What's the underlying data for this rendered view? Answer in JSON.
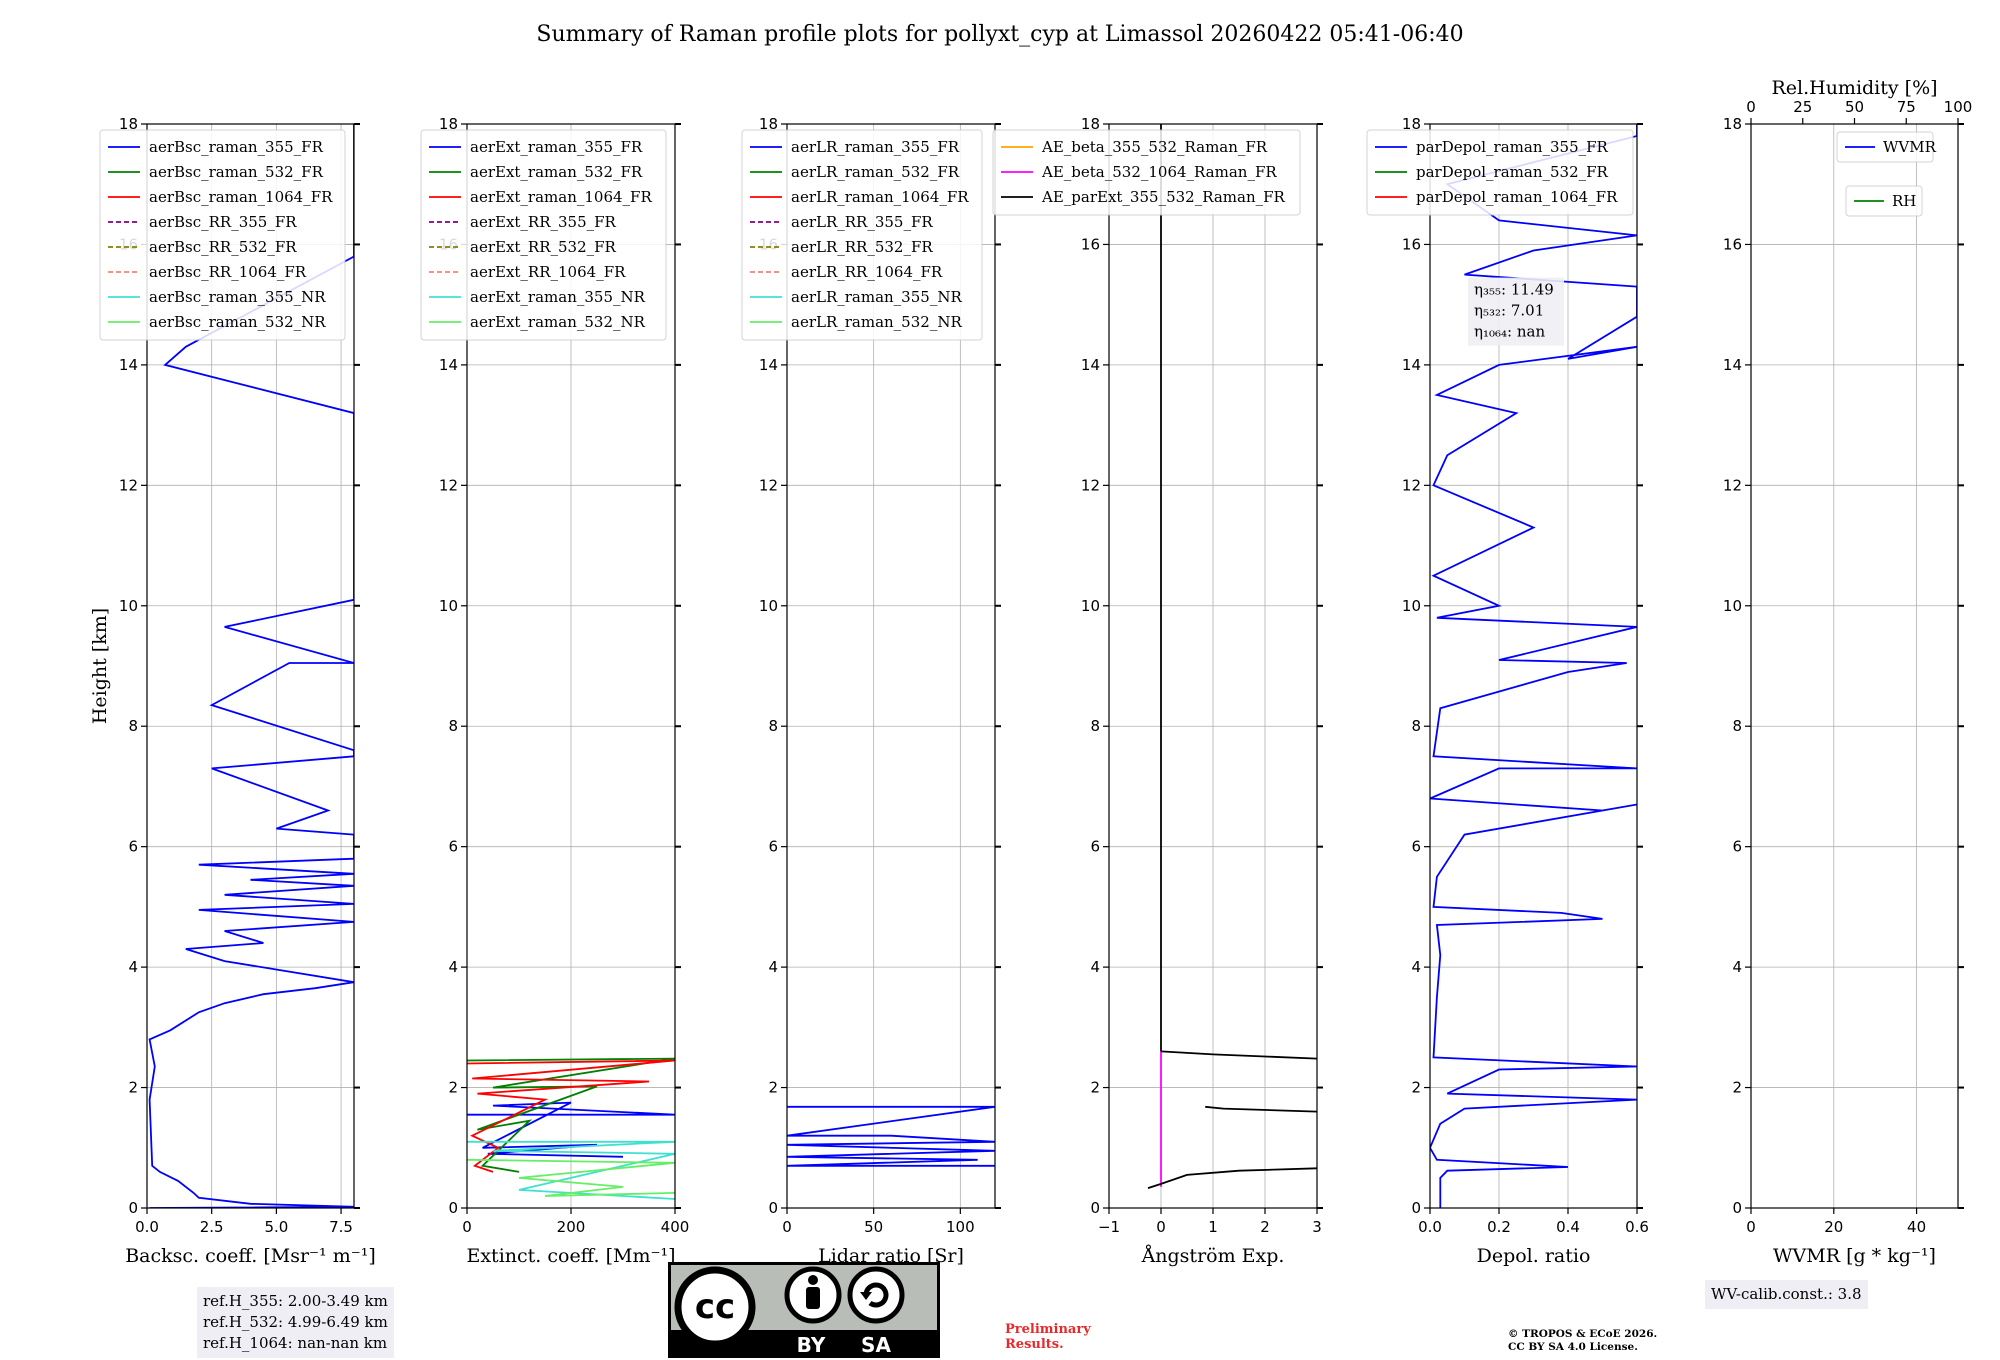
{
  "figure": {
    "title": "Summary of Raman profile plots for pollyxt_cyp at Limassol 20260422 05:41-06:40",
    "ylabel": "Height [km]",
    "y_ticks": [
      "0",
      "2",
      "4",
      "6",
      "8",
      "10",
      "12",
      "14",
      "16",
      "18"
    ],
    "ylim": [
      0,
      18
    ]
  },
  "chart_data": [
    {
      "type": "line",
      "name": "backscatter",
      "xlabel": "Backsc. coeff. [Msr⁻¹ m⁻¹]",
      "xlim": [
        0,
        8
      ],
      "x_ticks": [
        "0.0",
        "2.5",
        "5.0",
        "7.5"
      ],
      "x_tick_values": [
        0,
        2.5,
        5,
        7.5
      ],
      "legend": [
        "aerBsc_raman_355_FR",
        "aerBsc_raman_532_FR",
        "aerBsc_raman_1064_FR",
        "aerBsc_RR_355_FR",
        "aerBsc_RR_532_FR",
        "aerBsc_RR_1064_FR",
        "aerBsc_raman_355_NR",
        "aerBsc_raman_532_NR"
      ],
      "series": [
        {
          "name": "aerBsc_raman_355_FR",
          "points": [
            [
              0.1,
              0.0
            ],
            [
              8,
              0.02
            ],
            [
              4,
              0.07
            ],
            [
              2,
              0.17
            ],
            [
              1.8,
              0.25
            ],
            [
              1.2,
              0.45
            ],
            [
              0.5,
              0.6
            ],
            [
              0.2,
              0.7
            ],
            [
              0.1,
              1.8
            ],
            [
              0.3,
              2.35
            ],
            [
              0.1,
              2.8
            ],
            [
              0.9,
              2.95
            ],
            [
              2.0,
              3.25
            ],
            [
              3.0,
              3.4
            ],
            [
              4.5,
              3.55
            ],
            [
              6.5,
              3.65
            ],
            [
              8,
              3.75
            ],
            [
              3,
              4.1
            ],
            [
              1.5,
              4.3
            ],
            [
              4.5,
              4.4
            ],
            [
              3,
              4.6
            ],
            [
              8,
              4.75
            ],
            [
              2,
              4.95
            ],
            [
              8,
              5.05
            ],
            [
              3,
              5.2
            ],
            [
              8,
              5.35
            ],
            [
              4,
              5.45
            ],
            [
              8,
              5.55
            ],
            [
              2,
              5.7
            ],
            [
              8,
              5.8
            ],
            [
              8,
              6.2
            ],
            [
              5,
              6.3
            ],
            [
              7,
              6.6
            ],
            [
              2.5,
              7.3
            ],
            [
              8,
              7.5
            ],
            [
              8,
              7.6
            ],
            [
              2.5,
              8.35
            ],
            [
              5.5,
              9.05
            ],
            [
              8,
              9.05
            ],
            [
              3,
              9.65
            ],
            [
              8,
              10.1
            ],
            [
              8,
              13.2
            ],
            [
              0.7,
              14.0
            ],
            [
              1.5,
              14.3
            ],
            [
              8,
              15.8
            ],
            [
              8,
              17.3
            ],
            [
              8,
              17.8
            ],
            [
              8,
              18.0
            ]
          ]
        }
      ],
      "annotation": [
        "ref.H_355: 2.00-3.49 km",
        "ref.H_532: 4.99-6.49 km",
        "ref.H_1064: nan-nan km"
      ]
    },
    {
      "type": "line",
      "name": "extinction",
      "xlabel": "Extinct. coeff. [Mm⁻¹]",
      "xlim": [
        0,
        400
      ],
      "x_ticks": [
        "0",
        "200",
        "400"
      ],
      "x_tick_values": [
        0,
        200,
        400
      ],
      "legend": [
        "aerExt_raman_355_FR",
        "aerExt_raman_532_FR",
        "aerExt_raman_1064_FR",
        "aerExt_RR_355_FR",
        "aerExt_RR_532_FR",
        "aerExt_RR_1064_FR",
        "aerExt_raman_355_NR",
        "aerExt_raman_532_NR"
      ],
      "series": [
        {
          "name": "aerExt_raman_355_FR",
          "points": [
            [
              0,
              1.55
            ],
            [
              400,
              1.55
            ],
            [
              50,
              1.7
            ],
            [
              200,
              1.75
            ],
            [
              30,
              1.0
            ],
            [
              250,
              1.05
            ],
            [
              40,
              0.9
            ],
            [
              300,
              0.85
            ]
          ]
        },
        {
          "name": "aerExt_raman_532_FR",
          "points": [
            [
              0,
              2.45
            ],
            [
              400,
              2.48
            ],
            [
              50,
              2.0
            ],
            [
              250,
              2.02
            ],
            [
              20,
              1.3
            ],
            [
              120,
              1.45
            ],
            [
              30,
              0.7
            ],
            [
              100,
              0.6
            ]
          ]
        },
        {
          "name": "aerExt_raman_1064_FR",
          "points": [
            [
              0,
              2.4
            ],
            [
              400,
              2.45
            ],
            [
              10,
              2.15
            ],
            [
              350,
              2.1
            ],
            [
              20,
              1.9
            ],
            [
              150,
              1.8
            ],
            [
              10,
              1.2
            ],
            [
              60,
              1.0
            ],
            [
              15,
              0.7
            ],
            [
              50,
              0.6
            ]
          ]
        },
        {
          "name": "aerExt_raman_355_NR",
          "points": [
            [
              0,
              1.1
            ],
            [
              400,
              1.1
            ],
            [
              50,
              0.95
            ],
            [
              400,
              0.9
            ],
            [
              100,
              0.3
            ],
            [
              400,
              0.15
            ]
          ]
        },
        {
          "name": "aerExt_raman_532_NR",
          "points": [
            [
              0,
              0.8
            ],
            [
              400,
              0.75
            ],
            [
              100,
              0.5
            ],
            [
              300,
              0.35
            ],
            [
              150,
              0.2
            ],
            [
              400,
              0.25
            ]
          ]
        }
      ]
    },
    {
      "type": "line",
      "name": "lidar_ratio",
      "xlabel": "Lidar ratio [Sr]",
      "xlim": [
        0,
        120
      ],
      "x_ticks": [
        "0",
        "50",
        "100"
      ],
      "x_tick_values": [
        0,
        50,
        100
      ],
      "legend": [
        "aerLR_raman_355_FR",
        "aerLR_raman_532_FR",
        "aerLR_raman_1064_FR",
        "aerLR_RR_355_FR",
        "aerLR_RR_532_FR",
        "aerLR_RR_1064_FR",
        "aerLR_raman_355_NR",
        "aerLR_raman_532_NR"
      ],
      "series": [
        {
          "name": "aerLR_raman_355_FR",
          "points": [
            [
              0,
              1.68
            ],
            [
              120,
              1.68
            ],
            [
              0,
              1.2
            ],
            [
              60,
              1.2
            ],
            [
              120,
              1.1
            ],
            [
              0,
              1.05
            ],
            [
              120,
              0.95
            ],
            [
              0,
              0.85
            ],
            [
              110,
              0.8
            ],
            [
              0,
              0.7
            ],
            [
              120,
              0.7
            ]
          ]
        }
      ]
    },
    {
      "type": "line",
      "name": "angstrom",
      "xlabel": "Ångström Exp.",
      "xlim": [
        -1,
        3
      ],
      "x_ticks": [
        "−1",
        "0",
        "1",
        "2",
        "3"
      ],
      "x_tick_values": [
        -1,
        0,
        1,
        2,
        3
      ],
      "legend": [
        "AE_beta_355_532_Raman_FR",
        "AE_beta_532_1064_Raman_FR",
        "AE_parExt_355_532_Raman_FR"
      ],
      "series": [
        {
          "name": "AE_beta_532_1064_Raman_FR",
          "points": [
            [
              0,
              0.35
            ],
            [
              0,
              2.6
            ]
          ]
        },
        {
          "name": "AE_parExt_355_532_Raman_FR",
          "points": [
            [
              -0.25,
              0.33
            ],
            [
              0,
              0.4
            ],
            [
              0.5,
              0.55
            ],
            [
              1.5,
              0.62
            ],
            [
              3,
              0.66
            ]
          ]
        },
        {
          "name": "AE_parExt_355_532_Raman_FR",
          "points": [
            [
              0.85,
              1.68
            ],
            [
              1.2,
              1.65
            ],
            [
              3,
              1.6
            ]
          ]
        },
        {
          "name": "AE_parExt_355_532_Raman_FR",
          "points": [
            [
              0,
              2.6
            ],
            [
              1,
              2.55
            ],
            [
              3,
              2.48
            ]
          ]
        },
        {
          "name": "AE_parExt_355_532_Raman_FR",
          "points": [
            [
              0,
              2.6
            ],
            [
              0,
              18
            ]
          ]
        }
      ]
    },
    {
      "type": "line",
      "name": "depol",
      "xlabel": "Depol. ratio",
      "xlim": [
        0,
        0.6
      ],
      "x_ticks": [
        "0.0",
        "0.2",
        "0.4",
        "0.6"
      ],
      "x_tick_values": [
        0,
        0.2,
        0.4,
        0.6
      ],
      "legend": [
        "parDepol_raman_355_FR",
        "parDepol_raman_532_FR",
        "parDepol_raman_1064_FR"
      ],
      "series": [
        {
          "name": "parDepol_raman_355_FR",
          "points": [
            [
              0.03,
              0.0
            ],
            [
              0.03,
              0.5
            ],
            [
              0.05,
              0.62
            ],
            [
              0.4,
              0.68
            ],
            [
              0.02,
              0.8
            ],
            [
              0.0,
              1.0
            ],
            [
              0.03,
              1.4
            ],
            [
              0.1,
              1.65
            ],
            [
              0.6,
              1.8
            ],
            [
              0.05,
              1.9
            ],
            [
              0.2,
              2.3
            ],
            [
              0.6,
              2.35
            ],
            [
              0.01,
              2.5
            ],
            [
              0.02,
              3.5
            ],
            [
              0.03,
              4.2
            ],
            [
              0.02,
              4.7
            ],
            [
              0.5,
              4.8
            ],
            [
              0.38,
              4.9
            ],
            [
              0.01,
              5.0
            ],
            [
              0.02,
              5.5
            ],
            [
              0.1,
              6.2
            ],
            [
              0.6,
              6.7
            ],
            [
              0.5,
              6.6
            ],
            [
              0.0,
              6.8
            ],
            [
              0.2,
              7.3
            ],
            [
              0.6,
              7.3
            ],
            [
              0.01,
              7.5
            ],
            [
              0.03,
              8.3
            ],
            [
              0.4,
              8.9
            ],
            [
              0.57,
              9.05
            ],
            [
              0.2,
              9.1
            ],
            [
              0.6,
              9.65
            ],
            [
              0.02,
              9.8
            ],
            [
              0.2,
              10.0
            ],
            [
              0.01,
              10.5
            ],
            [
              0.3,
              11.3
            ],
            [
              0.01,
              12.0
            ],
            [
              0.05,
              12.5
            ],
            [
              0.25,
              13.2
            ],
            [
              0.02,
              13.5
            ],
            [
              0.2,
              14.0
            ],
            [
              0.6,
              14.3
            ],
            [
              0.4,
              14.1
            ],
            [
              0.6,
              14.8
            ],
            [
              0.6,
              15.3
            ],
            [
              0.1,
              15.5
            ],
            [
              0.3,
              15.9
            ],
            [
              0.6,
              16.15
            ],
            [
              0.2,
              16.4
            ],
            [
              0.05,
              17.0
            ],
            [
              0.6,
              17.8
            ],
            [
              0.6,
              18.0
            ]
          ]
        }
      ],
      "annotation": [
        "η₃₅₅: 11.49",
        "η₅₃₂: 7.01",
        "η₁₀₆₄: nan"
      ]
    },
    {
      "type": "line",
      "name": "wvmr",
      "xlabel": "WVMR [g * kg⁻¹]",
      "xlim": [
        0,
        50
      ],
      "x_ticks": [
        "0",
        "20",
        "40"
      ],
      "x_tick_values": [
        0,
        20,
        40
      ],
      "top_xlabel": "Rel.Humidity [%]",
      "top_xlim": [
        0,
        100
      ],
      "top_x_ticks": [
        "0",
        "25",
        "50",
        "75",
        "100"
      ],
      "top_x_tick_values": [
        0,
        25,
        50,
        75,
        100
      ],
      "legend": [
        "WVMR",
        "RH"
      ],
      "series": [],
      "annotation": [
        "WV-calib.const.: 3.8"
      ]
    }
  ],
  "footer": {
    "cc_label_by": "BY",
    "cc_label_sa": "SA",
    "cc_mark": "cc",
    "preliminary": [
      "Preliminary",
      "Results."
    ],
    "copyright": [
      "© TROPOS & ECoE 2026.",
      "CC BY SA 4.0 License."
    ]
  },
  "colors": {
    "raman_355_FR": "#0000ff",
    "raman_532_FR": "#008000",
    "raman_1064_FR": "#ff0000",
    "RR_355_FR": "#800080",
    "RR_532_FR": "#808000",
    "RR_1064_FR": "#fa8072",
    "raman_355_NR": "#40e0d0",
    "raman_532_NR": "#66ee66",
    "AE_355_532": "#ffa500",
    "AE_532_1064": "#ff00ff",
    "AE_ext": "#000000",
    "RH": "#008000",
    "preliminary": "#e8282b",
    "grid": "#b0b0b0"
  }
}
